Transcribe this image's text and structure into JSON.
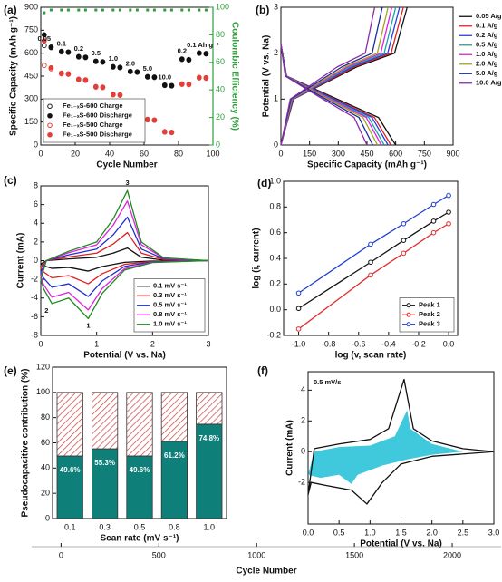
{
  "chart_data": [
    {
      "type": "scatter",
      "panel": "(a)",
      "xlabel": "Cycle Number",
      "ylabel": "Specific Capacity (mAh g⁻¹)",
      "y2label": "Coulombic Efficiency (%)",
      "xlim": [
        0,
        100
      ],
      "xticks": [
        0,
        20,
        40,
        60,
        80,
        100
      ],
      "ylim": [
        0,
        900
      ],
      "yticks": [
        0,
        150,
        300,
        450,
        600,
        750,
        900
      ],
      "y2lim": [
        0,
        100
      ],
      "y2ticks": [
        0,
        20,
        40,
        60,
        80,
        100
      ],
      "legend": "lower left",
      "annotations": [
        "0.05",
        "0.1",
        "0.2",
        "0.5",
        "1.0",
        "2.0",
        "5.0",
        "10.0",
        "0.2",
        "0.1 Ah g⁻¹"
      ],
      "x": [
        2,
        6,
        12,
        16,
        22,
        26,
        32,
        36,
        42,
        46,
        52,
        56,
        62,
        66,
        72,
        76,
        82,
        86,
        92,
        96
      ],
      "series": [
        {
          "name": "Fe₁₋ₓS-600 Charge",
          "color": "#222222",
          "marker": "open",
          "values": [
            650,
            636,
            608,
            605,
            575,
            571,
            545,
            541,
            509,
            505,
            479,
            475,
            444,
            441,
            389,
            386,
            559,
            555,
            599,
            595
          ]
        },
        {
          "name": "Fe₁₋ₓS-600 Discharge",
          "color": "#111111",
          "marker": "filled",
          "values": [
            720,
            640,
            612,
            608,
            578,
            574,
            548,
            544,
            512,
            508,
            482,
            478,
            447,
            444,
            392,
            389,
            562,
            558,
            602,
            598
          ]
        },
        {
          "name": "Fe₁₋ₓS-500 Charge",
          "color": "#e0403a",
          "marker": "open",
          "values": [
            520,
            498,
            465,
            462,
            426,
            422,
            378,
            375,
            328,
            325,
            268,
            265,
            164,
            161,
            84,
            81,
            396,
            394,
            438,
            436
          ]
        },
        {
          "name": "Fe₁₋ₓS-500 Discharge",
          "color": "#e0403a",
          "marker": "filled",
          "values": [
            680,
            505,
            470,
            466,
            430,
            426,
            382,
            378,
            332,
            328,
            272,
            268,
            168,
            164,
            88,
            84,
            400,
            398,
            442,
            440
          ]
        },
        {
          "color": "#2e9e3a",
          "marker": "filled",
          "axis": "y2",
          "values": [
            96,
            98,
            98,
            98,
            98,
            98,
            98,
            98,
            98,
            98,
            98,
            98,
            98,
            98,
            98,
            98,
            98,
            98,
            98,
            98
          ]
        }
      ]
    },
    {
      "type": "line",
      "panel": "(b)",
      "xlabel": "Specific Capacity (mAh g⁻¹)",
      "ylabel": "Potential (V vs. Na)",
      "xlim": [
        0,
        900
      ],
      "xticks": [
        0,
        150,
        300,
        450,
        600,
        750,
        900
      ],
      "ylim": [
        0,
        3
      ],
      "yticks": [
        0,
        1,
        2,
        3
      ],
      "legend": "right",
      "series": [
        {
          "name": "0.05 A/g",
          "color": "#111111",
          "x": [
            0,
            30,
            240,
            510,
            600,
            null,
            0,
            66,
            396,
            594,
            660
          ],
          "values": [
            2.2,
            1.5,
            1.1,
            0.6,
            0,
            null,
            0,
            1.0,
            1.7,
            2.0,
            3.0
          ]
        },
        {
          "name": "0.1 A/g",
          "color": "#e02020",
          "x": [
            0,
            29,
            230,
            489,
            575,
            null,
            0,
            64,
            384,
            576,
            640
          ],
          "values": [
            2.2,
            1.5,
            1.1,
            0.6,
            0,
            null,
            0,
            1.0,
            1.7,
            2.0,
            3.0
          ]
        },
        {
          "name": "0.2 A/g",
          "color": "#2040e0",
          "x": [
            0,
            28,
            224,
            476,
            560,
            null,
            0,
            62,
            372,
            558,
            620
          ],
          "values": [
            2.2,
            1.5,
            1.1,
            0.6,
            0,
            null,
            0,
            1.0,
            1.7,
            2.0,
            3.0
          ]
        },
        {
          "name": "0.5 A/g",
          "color": "#1aa5a5",
          "x": [
            0,
            27,
            216,
            459,
            540,
            null,
            0,
            60,
            360,
            540,
            600
          ],
          "values": [
            2.2,
            1.5,
            1.1,
            0.6,
            0,
            null,
            0,
            1.0,
            1.7,
            2.0,
            3.0
          ]
        },
        {
          "name": "1.0 A/g",
          "color": "#e020e0",
          "x": [
            0,
            26,
            210,
            446,
            525,
            null,
            0,
            58,
            348,
            522,
            580
          ],
          "values": [
            2.2,
            1.5,
            1.1,
            0.6,
            0,
            null,
            0,
            1.0,
            1.7,
            2.0,
            3.0
          ]
        },
        {
          "name": "2.0 A/g",
          "color": "#a8a020",
          "x": [
            0,
            25,
            202,
            429,
            505,
            null,
            0,
            56,
            336,
            504,
            560
          ],
          "values": [
            2.2,
            1.5,
            1.1,
            0.6,
            0,
            null,
            0,
            1.0,
            1.7,
            2.0,
            3.0
          ]
        },
        {
          "name": "5.0 A/g",
          "color": "#1c2a9a",
          "x": [
            0,
            24,
            192,
            408,
            480,
            null,
            0,
            53,
            318,
            477,
            530
          ],
          "values": [
            2.2,
            1.5,
            1.1,
            0.6,
            0,
            null,
            0,
            1.0,
            1.7,
            2.0,
            3.0
          ]
        },
        {
          "name": "10.0 A/g",
          "color": "#8a2aa8",
          "x": [
            0,
            23,
            180,
            383,
            450,
            null,
            0,
            49,
            294,
            441,
            490
          ],
          "values": [
            2.2,
            1.5,
            1.1,
            0.6,
            0,
            null,
            0,
            1.0,
            1.7,
            2.0,
            3.0
          ]
        }
      ]
    },
    {
      "type": "line",
      "panel": "(c)",
      "xlabel": "Potential (V vs. Na)",
      "ylabel": "Current (mA)",
      "xlim": [
        0,
        3
      ],
      "xticks": [
        0,
        1,
        2,
        3
      ],
      "ylim": [
        -8,
        8
      ],
      "yticks": [
        -8,
        -6,
        -4,
        -2,
        0,
        2,
        4,
        6,
        8
      ],
      "legend": "lower right",
      "annotations": [
        "1",
        "2",
        "3"
      ],
      "x": [
        3.0,
        2.0,
        1.5,
        1.1,
        0.85,
        0.5,
        0.2,
        0.05,
        0.0,
        0.1,
        0.5,
        1.0,
        1.3,
        1.55,
        1.8,
        2.2,
        3.0
      ],
      "series": [
        {
          "name": "0.1 mV s⁻¹",
          "color": "#111111",
          "values": [
            0,
            -0.04,
            -0.18,
            -0.63,
            -1.12,
            -0.72,
            -0.83,
            -0.54,
            -0.36,
            0,
            0.18,
            0.36,
            0.81,
            1.35,
            0.36,
            0.05,
            0
          ]
        },
        {
          "name": "0.3 mV s⁻¹",
          "color": "#e02020",
          "values": [
            0,
            -0.08,
            -0.4,
            -1.4,
            -2.48,
            -1.6,
            -1.84,
            -1.2,
            -0.8,
            0,
            0.4,
            0.8,
            1.8,
            3.0,
            0.8,
            0.12,
            0
          ]
        },
        {
          "name": "0.5 mV s⁻¹",
          "color": "#2030d0",
          "values": [
            0,
            -0.12,
            -0.62,
            -2.17,
            -3.84,
            -2.48,
            -2.85,
            -1.86,
            -1.24,
            0,
            0.62,
            1.24,
            2.79,
            4.65,
            1.24,
            0.19,
            0
          ]
        },
        {
          "name": "0.8 mV s⁻¹",
          "color": "#e020e0",
          "values": [
            0,
            -0.17,
            -0.85,
            -2.98,
            -5.27,
            -3.4,
            -3.91,
            -2.55,
            -1.7,
            0,
            0.85,
            1.7,
            3.83,
            6.38,
            1.7,
            0.26,
            0
          ]
        },
        {
          "name": "1.0 mV s⁻¹",
          "color": "#1e8a1e",
          "values": [
            0,
            -0.2,
            -1.0,
            -3.5,
            -6.2,
            -4.0,
            -4.6,
            -3.0,
            -2.0,
            0.0,
            1.0,
            2.0,
            4.5,
            7.5,
            2.0,
            0.3,
            0.0
          ]
        }
      ]
    },
    {
      "type": "line",
      "panel": "(d)",
      "xlabel": "log (v, scan rate)",
      "ylabel": "log (i, current)",
      "markers": true,
      "xlim": [
        -1.1,
        0.06
      ],
      "xticks": [
        {
          "value": -1,
          "label": "-1.0"
        },
        {
          "value": -0.8,
          "label": "-0.8"
        },
        {
          "value": -0.6,
          "label": "-0.6"
        },
        {
          "value": -0.4,
          "label": "-0.4"
        },
        {
          "value": -0.2,
          "label": "-0.2"
        },
        {
          "value": 0,
          "label": "0.0"
        }
      ],
      "ylim": [
        -0.2,
        1.0
      ],
      "yticks": [
        -0.2,
        {
          "value": 0,
          "label": "0.0"
        },
        0.2,
        0.4,
        0.6,
        0.8,
        {
          "value": 1,
          "label": "1.0"
        }
      ],
      "legend": "lower right",
      "x": [
        -1,
        -0.52,
        -0.3,
        -0.1,
        0
      ],
      "series": [
        {
          "name": "Peak 1",
          "color": "#111111",
          "values": [
            0.01,
            0.37,
            0.54,
            0.69,
            0.76
          ]
        },
        {
          "name": "Peak 2",
          "color": "#e03030",
          "values": [
            -0.15,
            0.27,
            0.44,
            0.6,
            0.67
          ]
        },
        {
          "name": "Peak 3",
          "color": "#2040d0",
          "values": [
            0.13,
            0.51,
            0.67,
            0.82,
            0.89
          ]
        }
      ]
    },
    {
      "type": "bar",
      "panel": "(e)",
      "xlabel": "Scan rate (mV s⁻¹)",
      "ylabel": "Pseudocapacitive contribution (%)",
      "stacked": true,
      "categories": [
        "0.1",
        "0.3",
        "0.5",
        "0.8",
        "1.0"
      ],
      "ylim": [
        0,
        120
      ],
      "yticks": [
        0,
        20,
        40,
        60,
        80,
        100,
        120
      ],
      "series": [
        {
          "color": "#0f7f7a",
          "values": [
            49.6,
            55.3,
            49.6,
            61.2,
            74.8
          ],
          "value_labels": [
            "49.6%",
            "55.3%",
            "49.6%",
            "61.2%",
            "74.8%"
          ]
        },
        {
          "color": "#c9403a",
          "hatch": true,
          "values": [
            50.4,
            44.7,
            50.4,
            38.8,
            25.2
          ]
        }
      ]
    },
    {
      "type": "line",
      "panel": "(f)",
      "xlabel": "Potential (V vs. Na)",
      "ylabel": "Current (mA)",
      "xlim": [
        0,
        3
      ],
      "xticks": [
        {
          "value": 0,
          "label": "0.0"
        },
        0.5,
        {
          "value": 1,
          "label": "1.0"
        },
        1.5,
        {
          "value": 2,
          "label": "2.0"
        },
        2.5,
        {
          "value": 3,
          "label": "3.0"
        }
      ],
      "ylim": [
        -4.7,
        5.2
      ],
      "yticks": [
        -2,
        0,
        2,
        4
      ],
      "annotations": [
        "0.5 mV/s"
      ],
      "series": [
        {
          "color": "#40c8dc",
          "fill": true,
          "x": [
            2.5,
            2.0,
            1.6,
            1.2,
            0.8,
            0.7,
            0.5,
            0.2,
            0.0,
            0.1,
            0.5,
            1.0,
            1.4,
            1.6,
            1.65,
            2.0,
            2.5
          ],
          "values": [
            0,
            -0.2,
            -0.5,
            -0.9,
            -1.5,
            -2.1,
            -1.5,
            -1.7,
            -1.5,
            0.0,
            0.3,
            0.4,
            1.0,
            2.7,
            1.5,
            0.5,
            0
          ]
        },
        {
          "color": "#111111",
          "x": [
            3.0,
            2.0,
            1.5,
            1.2,
            0.95,
            0.7,
            0.3,
            0.05,
            0.0,
            0.1,
            0.5,
            1.0,
            1.3,
            1.55,
            1.7,
            2.0,
            2.5,
            3.0
          ],
          "values": [
            0,
            -0.3,
            -0.8,
            -2.0,
            -3.4,
            -2.5,
            -2.2,
            -2.0,
            -2.8,
            0.2,
            0.5,
            0.8,
            1.5,
            4.7,
            1.5,
            0.7,
            0.2,
            0
          ]
        }
      ]
    },
    {
      "type": "axis",
      "xlabel": "Cycle Number",
      "xlim": [
        -150,
        2250
      ],
      "xticks": [
        0,
        500,
        1000,
        1500,
        2000
      ]
    }
  ]
}
